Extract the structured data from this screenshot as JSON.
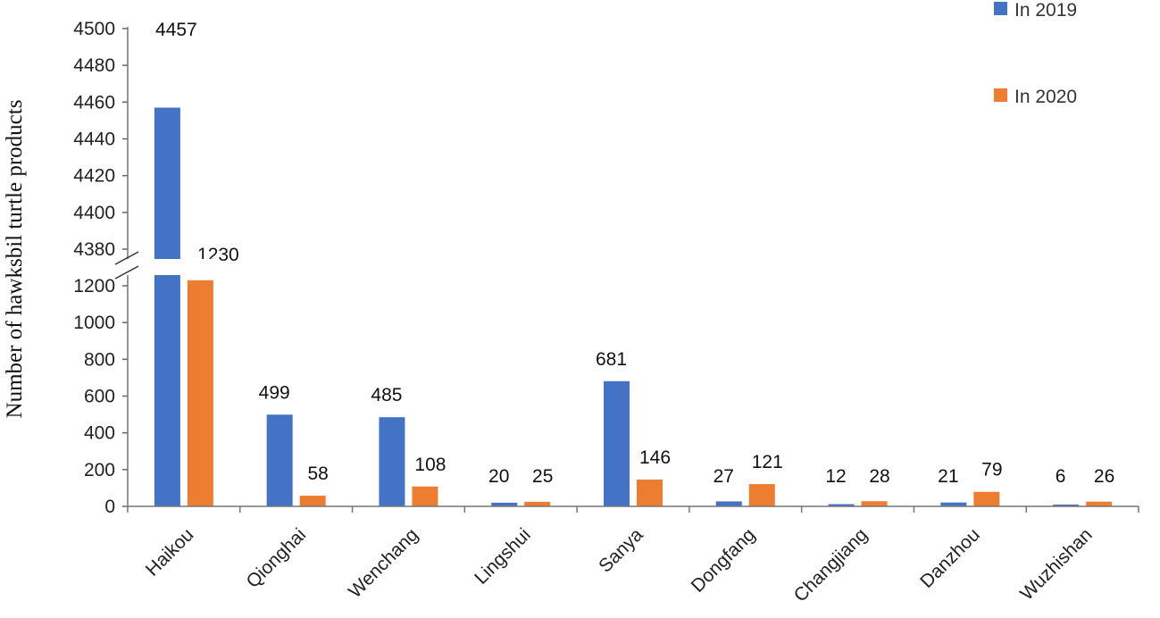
{
  "chart_data": {
    "type": "bar",
    "ylabel": "Number of hawksbil turtle products",
    "categories": [
      "Haikou",
      "Qionghai",
      "Wenchang",
      "Lingshui",
      "Sanya",
      "Dongfang",
      "Changjiang",
      "Danzhou",
      "Wuzhishan"
    ],
    "series": [
      {
        "name": "In 2019",
        "color": "#4472C4",
        "values": [
          4457,
          499,
          485,
          20,
          681,
          27,
          12,
          21,
          6
        ]
      },
      {
        "name": "In 2020",
        "color": "#ED7D31",
        "values": [
          1230,
          58,
          108,
          25,
          146,
          121,
          28,
          79,
          26
        ]
      }
    ],
    "y_axis": {
      "broken": true,
      "lower_ticks": [
        "0",
        "200",
        "400",
        "600",
        "800",
        "1000",
        "1200"
      ],
      "upper_ticks": [
        "4380",
        "4400",
        "4420",
        "4440",
        "4460",
        "4480",
        "4500"
      ],
      "lower_range": [
        0,
        1260
      ],
      "upper_range": [
        4370,
        4500
      ]
    },
    "legend": {
      "position": "top-right"
    },
    "grid": false
  }
}
